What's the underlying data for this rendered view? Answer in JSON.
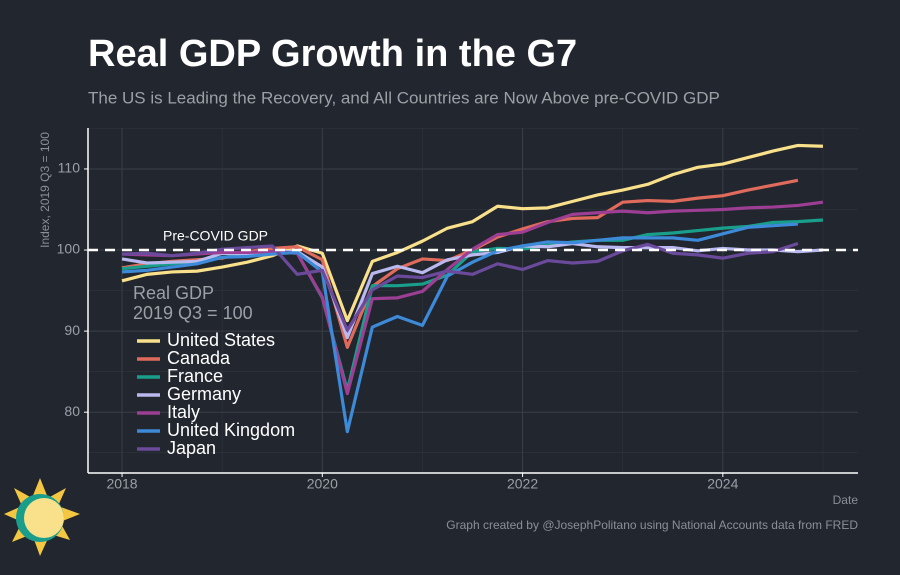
{
  "chart_data": {
    "type": "line",
    "title": "Real GDP Growth in the G7",
    "subtitle": "The US is Leading the Recovery, and All Countries are Now Above pre-COVID GDP",
    "y_axis_label": "Index, 2019 Q3 = 100",
    "x_axis_label": "Date",
    "caption": "Graph created by @JosephPolitano using National Accounts data from FRED",
    "legend_title": [
      "Real GDP",
      "2019 Q3 = 100"
    ],
    "legend_position": "left",
    "grid": true,
    "reference_line": {
      "value": 100,
      "label": "Pre-COVID GDP"
    },
    "x": [
      2018,
      2018.25,
      2018.5,
      2018.75,
      2019,
      2019.25,
      2019.5,
      2019.75,
      2020,
      2020.25,
      2020.5,
      2020.75,
      2021,
      2021.25,
      2021.5,
      2021.75,
      2022,
      2022.25,
      2022.5,
      2022.75,
      2023,
      2023.25,
      2023.5,
      2023.75,
      2024,
      2024.25,
      2024.5,
      2024.75,
      2025
    ],
    "xlim": [
      2017.66,
      2025.35
    ],
    "xticks": [
      2018,
      2020,
      2022,
      2024
    ],
    "minor_xticks": [
      2019,
      2021,
      2023,
      2025
    ],
    "ylim": [
      72.5,
      115.05
    ],
    "yticks": [
      80,
      90,
      100,
      110
    ],
    "minor_yticks": [
      75,
      85,
      95,
      105,
      115
    ],
    "series": [
      {
        "name": "United States",
        "color": "#f9e08b",
        "values": [
          96.2,
          97.0,
          97.3,
          97.4,
          97.9,
          98.5,
          99.3,
          100.5,
          99.6,
          91.3,
          98.6,
          99.7,
          101.1,
          102.7,
          103.5,
          105.4,
          105.1,
          105.2,
          106.0,
          106.8,
          107.4,
          108.1,
          109.3,
          110.2,
          110.6,
          111.4,
          112.2,
          112.9,
          112.8
        ]
      },
      {
        "name": "Canada",
        "color": "#e06b5c",
        "values": [
          97.8,
          98.3,
          98.6,
          98.8,
          99.0,
          99.8,
          100.2,
          100.4,
          98.8,
          88.0,
          95.5,
          97.7,
          98.9,
          98.7,
          100.0,
          101.6,
          102.6,
          103.5,
          103.9,
          104.0,
          105.9,
          106.1,
          106.0,
          106.4,
          106.7,
          107.4,
          108.0,
          108.6,
          null
        ]
      },
      {
        "name": "France",
        "color": "#1a9e8c",
        "values": [
          97.7,
          98.0,
          98.3,
          98.6,
          99.1,
          99.4,
          99.8,
          99.6,
          94.1,
          82.7,
          95.6,
          95.6,
          95.8,
          96.9,
          99.8,
          100.2,
          100.1,
          100.6,
          101.0,
          101.2,
          101.2,
          101.9,
          102.1,
          102.4,
          102.7,
          102.9,
          103.4,
          103.5,
          103.7
        ]
      },
      {
        "name": "Germany",
        "color": "#b9b9ef",
        "values": [
          98.9,
          98.4,
          98.5,
          98.6,
          99.6,
          99.5,
          99.8,
          99.8,
          97.9,
          89.2,
          97.1,
          98.0,
          97.2,
          98.8,
          99.4,
          99.7,
          100.5,
          100.4,
          100.8,
          100.4,
          100.3,
          100.3,
          100.3,
          99.9,
          100.2,
          100.0,
          100.0,
          99.8,
          100.0
        ]
      },
      {
        "name": "Italy",
        "color": "#9b3e94",
        "values": [
          99.5,
          99.4,
          99.3,
          99.5,
          99.7,
          99.7,
          99.8,
          99.6,
          94.2,
          82.3,
          94.0,
          94.1,
          94.9,
          97.6,
          100.1,
          101.9,
          102.2,
          103.4,
          104.4,
          104.6,
          104.8,
          104.6,
          104.8,
          104.9,
          105.0,
          105.2,
          105.3,
          105.5,
          105.9
        ]
      },
      {
        "name": "United Kingdom",
        "color": "#3d8ad9",
        "values": [
          97.3,
          97.5,
          97.9,
          98.3,
          99.1,
          99.2,
          99.5,
          99.7,
          97.3,
          77.6,
          90.5,
          91.8,
          90.7,
          96.8,
          98.5,
          99.9,
          100.5,
          101.0,
          100.9,
          101.2,
          101.5,
          101.5,
          101.5,
          101.2,
          102.0,
          102.8,
          103.0,
          103.2,
          null
        ]
      },
      {
        "name": "Japan",
        "color": "#6b4a9c",
        "values": [
          99.5,
          99.6,
          99.3,
          99.6,
          100.1,
          100.3,
          100.5,
          97.0,
          97.5,
          90.1,
          95.1,
          96.8,
          96.6,
          97.4,
          97.0,
          98.3,
          97.6,
          98.7,
          98.4,
          98.6,
          99.9,
          100.7,
          99.6,
          99.4,
          99.0,
          99.6,
          99.8,
          100.8,
          null
        ]
      }
    ]
  }
}
